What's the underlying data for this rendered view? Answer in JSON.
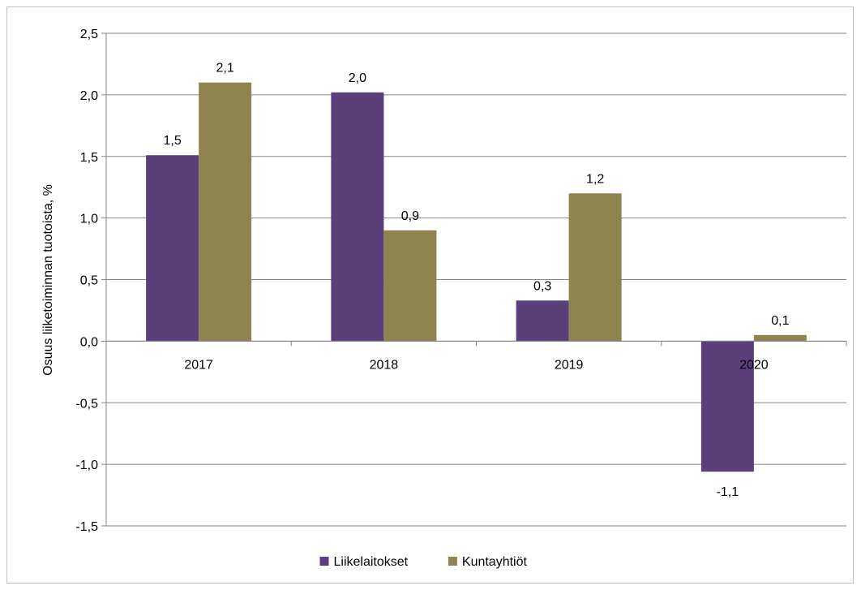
{
  "chart_data": {
    "type": "bar",
    "categories": [
      "2017",
      "2018",
      "2019",
      "2020"
    ],
    "series": [
      {
        "name": "Liikelaitokset",
        "color": "#5b3f7a",
        "values": [
          1.51,
          2.02,
          0.33,
          -1.06
        ],
        "labels": [
          "1,5",
          "2,0",
          "0,3",
          "-1,1"
        ]
      },
      {
        "name": "Kuntayhtiöt",
        "color": "#8f8450",
        "values": [
          2.1,
          0.9,
          1.2,
          0.05
        ],
        "labels": [
          "2,1",
          "0,9",
          "1,2",
          "0,1"
        ]
      }
    ],
    "title": "",
    "xlabel": "",
    "ylabel": "Osuus liiketoiminnan tuotoista, %",
    "ylim": [
      -1.5,
      2.5
    ],
    "yticks": [
      2.5,
      2.0,
      1.5,
      1.0,
      0.5,
      0.0,
      -0.5,
      -1.0,
      -1.5
    ],
    "ytick_labels": [
      "2,5",
      "2,0",
      "1,5",
      "1,0",
      "0,5",
      "0,0",
      "-0,5",
      "-1,0",
      "-1,5"
    ],
    "grid": true,
    "legend_position": "bottom"
  }
}
